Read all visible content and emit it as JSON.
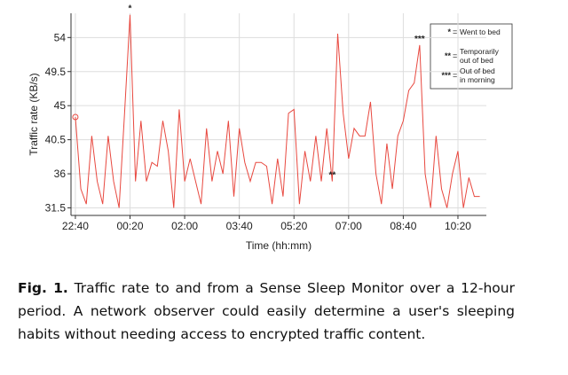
{
  "chart_data": {
    "type": "line",
    "ylabel": "Traffic rate (KB/s)",
    "xlabel": "Time (hh:mm)",
    "x": [
      0,
      10,
      20,
      30,
      40,
      50,
      60,
      70,
      80,
      90,
      100,
      110,
      120,
      130,
      140,
      150,
      160,
      170,
      180,
      190,
      200,
      210,
      220,
      230,
      240,
      250,
      260,
      270,
      280,
      290,
      300,
      310,
      320,
      330,
      340,
      350,
      360,
      370,
      380,
      390,
      400,
      410,
      420,
      430,
      440,
      450,
      460,
      470,
      480,
      490,
      500,
      510,
      520,
      530,
      540,
      550,
      560,
      570,
      580,
      590,
      600,
      610,
      620,
      630,
      640,
      650,
      660,
      670,
      680,
      690,
      700,
      710,
      720,
      730,
      740
    ],
    "values": [
      43.5,
      34,
      32,
      41,
      35,
      32,
      41,
      35,
      31.5,
      44,
      57,
      35,
      43,
      35,
      37.5,
      37,
      43,
      39,
      31.5,
      44.5,
      35,
      38,
      35,
      32,
      42,
      35,
      39,
      36,
      43,
      33,
      42,
      37.5,
      35,
      37.5,
      37.5,
      37,
      32,
      38,
      33,
      44,
      44.5,
      32,
      39,
      35,
      41,
      35,
      42,
      35,
      54.5,
      44,
      38,
      42,
      41,
      41,
      45.5,
      36,
      32,
      40,
      34,
      41,
      43,
      47,
      48,
      53,
      36,
      31.5,
      41,
      34,
      31.5,
      36,
      39,
      31.5,
      35.5,
      33,
      33
    ],
    "color": "#e8483f",
    "xlim": [
      -8,
      752
    ],
    "ylim": [
      30.5,
      57.2
    ],
    "xticks": [
      {
        "value": 0,
        "label": "22:40"
      },
      {
        "value": 100,
        "label": "00:20"
      },
      {
        "value": 200,
        "label": "02:00"
      },
      {
        "value": 300,
        "label": "03:40"
      },
      {
        "value": 400,
        "label": "05:20"
      },
      {
        "value": 500,
        "label": "07:00"
      },
      {
        "value": 600,
        "label": "08:40"
      },
      {
        "value": 700,
        "label": "10:20"
      }
    ],
    "yticks": [
      31.5,
      36,
      40.5,
      45,
      49.5,
      54
    ],
    "grid": true,
    "legend_separator": "=",
    "annotations": [
      {
        "label": "*",
        "x": 100,
        "lines": [
          "Went to bed"
        ]
      },
      {
        "label": "**",
        "x": 470,
        "lines": [
          "Temporarily",
          "out of bed"
        ]
      },
      {
        "label": "***",
        "x": 630,
        "lines": [
          "Out of bed",
          "in morning"
        ]
      }
    ]
  },
  "caption": {
    "label": "Fig. 1.",
    "text": "Traffic rate to and from a Sense Sleep Monitor over a 12-hour period. A network observer could easily determine a user's sleeping habits without needing access to encrypted traffic content."
  }
}
